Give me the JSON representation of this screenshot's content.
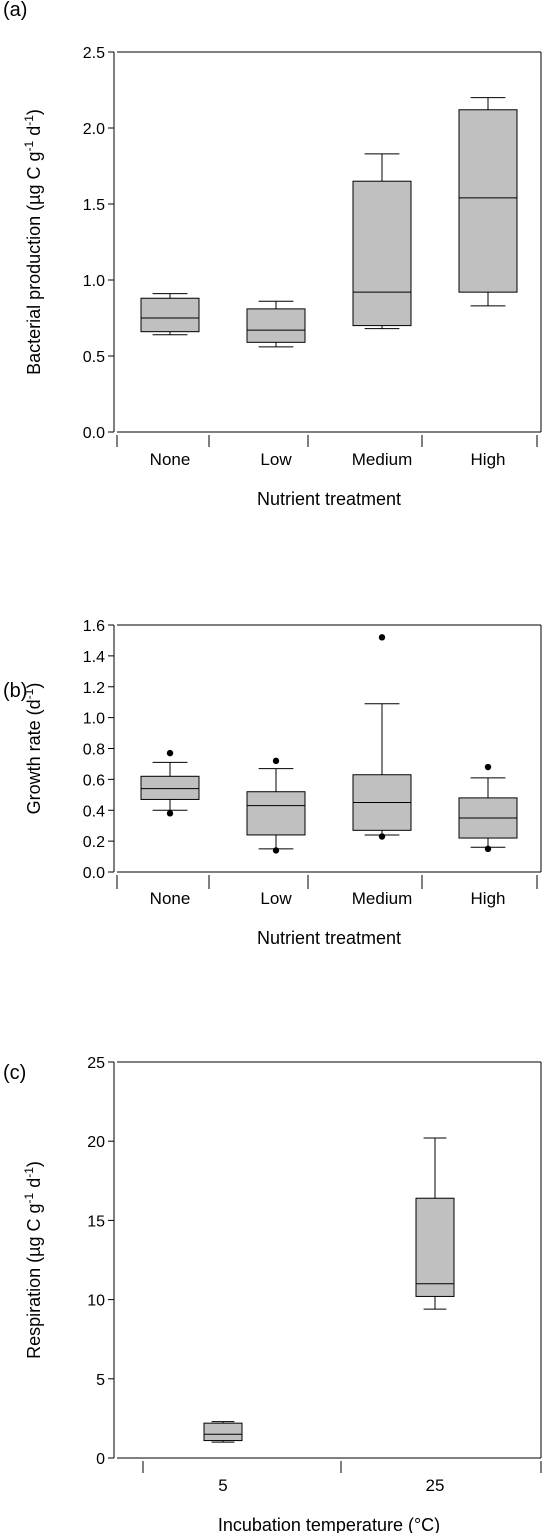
{
  "chart_data": [
    {
      "panel_label": "(a)",
      "type": "box",
      "ylabel_parts": [
        "Bacterial production (µg C g",
        "-1",
        " d",
        "-1",
        ")"
      ],
      "xlabel": "Nutrient treatment",
      "ylim": [
        0,
        2.5
      ],
      "ytick_values": [
        0,
        0.5,
        1.0,
        1.5,
        2.0,
        2.5
      ],
      "ytick_labels": [
        "0.0",
        "0.5",
        "1.0",
        "1.5",
        "2.0",
        "2.5"
      ],
      "categories": [
        "None",
        "Low",
        "Medium",
        "High"
      ],
      "boxes": [
        {
          "category": "None",
          "whisker_low": 0.64,
          "q1": 0.66,
          "median": 0.75,
          "q3": 0.88,
          "whisker_high": 0.91,
          "outliers": []
        },
        {
          "category": "Low",
          "whisker_low": 0.56,
          "q1": 0.59,
          "median": 0.67,
          "q3": 0.81,
          "whisker_high": 0.86,
          "outliers": []
        },
        {
          "category": "Medium",
          "whisker_low": 0.68,
          "q1": 0.7,
          "median": 0.92,
          "q3": 1.65,
          "whisker_high": 1.83,
          "outliers": []
        },
        {
          "category": "High",
          "whisker_low": 0.83,
          "q1": 0.92,
          "median": 1.54,
          "q3": 2.12,
          "whisker_high": 2.2,
          "outliers": []
        }
      ],
      "grid": false
    },
    {
      "panel_label": "(b)",
      "type": "box",
      "ylabel_parts": [
        "Growth rate (d",
        "-1",
        ")"
      ],
      "xlabel": "Nutrient treatment",
      "ylim": [
        0,
        1.6
      ],
      "ytick_values": [
        0,
        0.2,
        0.4,
        0.6,
        0.8,
        1.0,
        1.2,
        1.4,
        1.6
      ],
      "ytick_labels": [
        "0.0",
        "0.2",
        "0.4",
        "0.6",
        "0.8",
        "1.0",
        "1.2",
        "1.4",
        "1.6"
      ],
      "categories": [
        "None",
        "Low",
        "Medium",
        "High"
      ],
      "boxes": [
        {
          "category": "None",
          "whisker_low": 0.4,
          "q1": 0.47,
          "median": 0.54,
          "q3": 0.62,
          "whisker_high": 0.71,
          "outliers": [
            0.38,
            0.77
          ]
        },
        {
          "category": "Low",
          "whisker_low": 0.15,
          "q1": 0.24,
          "median": 0.43,
          "q3": 0.52,
          "whisker_high": 0.67,
          "outliers": [
            0.14,
            0.72
          ]
        },
        {
          "category": "Medium",
          "whisker_low": 0.24,
          "q1": 0.27,
          "median": 0.45,
          "q3": 0.63,
          "whisker_high": 1.09,
          "outliers": [
            0.23,
            1.52
          ]
        },
        {
          "category": "High",
          "whisker_low": 0.16,
          "q1": 0.22,
          "median": 0.35,
          "q3": 0.48,
          "whisker_high": 0.61,
          "outliers": [
            0.15,
            0.68
          ]
        }
      ],
      "grid": false
    },
    {
      "panel_label": "(c)",
      "type": "box",
      "ylabel_parts": [
        "Respiration (µg C g",
        "-1",
        " d",
        "-1",
        ")"
      ],
      "xlabel": "Incubation temperature (°C)",
      "ylim": [
        0,
        25
      ],
      "ytick_values": [
        0,
        5,
        10,
        15,
        20,
        25
      ],
      "ytick_labels": [
        "0",
        "5",
        "10",
        "15",
        "20",
        "25"
      ],
      "categories": [
        "5",
        "25"
      ],
      "boxes": [
        {
          "category": "5",
          "whisker_low": 1.0,
          "q1": 1.1,
          "median": 1.5,
          "q3": 2.2,
          "whisker_high": 2.3,
          "outliers": []
        },
        {
          "category": "25",
          "whisker_low": 9.4,
          "q1": 10.2,
          "median": 11.0,
          "q3": 16.4,
          "whisker_high": 20.2,
          "outliers": []
        }
      ],
      "grid": false
    }
  ],
  "style": {
    "box_fill": "#c0c0c0",
    "line_color": "#000000"
  }
}
